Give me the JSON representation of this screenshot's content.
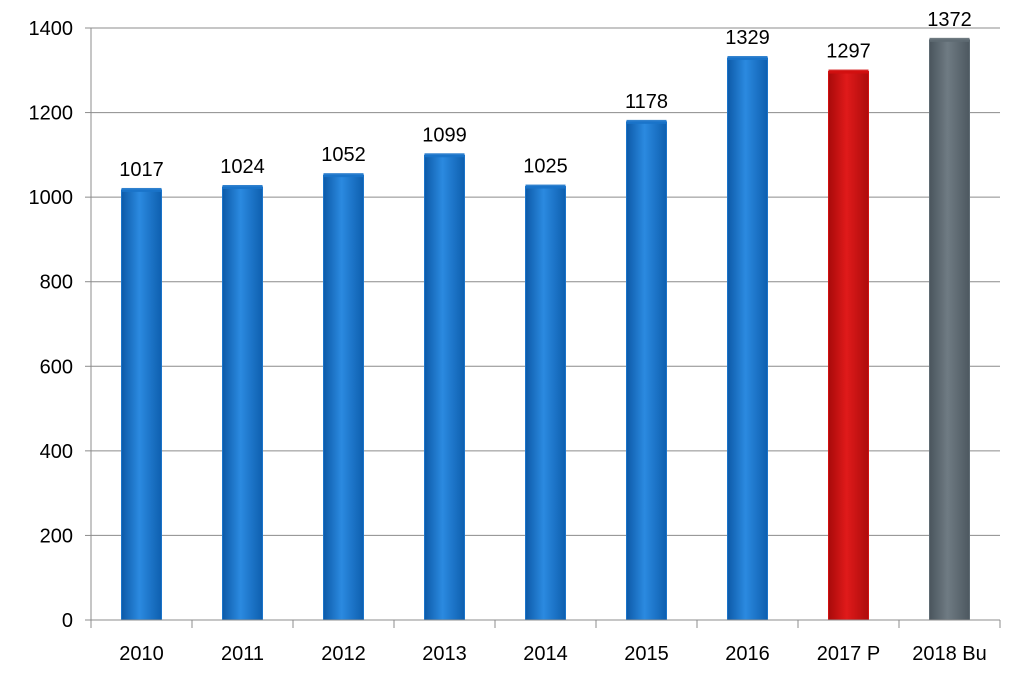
{
  "chart_data": {
    "type": "bar",
    "title": "",
    "xlabel": "",
    "ylabel": "",
    "categories": [
      "2010",
      "2011",
      "2012",
      "2013",
      "2014",
      "2015",
      "2016",
      "2017 P",
      "2018 Bu"
    ],
    "values": [
      1017,
      1024,
      1052,
      1099,
      1025,
      1178,
      1329,
      1297,
      1372
    ],
    "data_labels": [
      "1017",
      "1024",
      "1052",
      "1099",
      "1025",
      "1178",
      "1329",
      "1297",
      "1372"
    ],
    "bar_colors": [
      "#1a73c9",
      "#1a73c9",
      "#1a73c9",
      "#1a73c9",
      "#1a73c9",
      "#1a73c9",
      "#1a73c9",
      "#d21010",
      "#5f6b73"
    ],
    "ylim": [
      0,
      1400
    ],
    "yticks": [
      0,
      200,
      400,
      600,
      800,
      1000,
      1200,
      1400
    ],
    "ytick_labels": [
      "0",
      "200",
      "400",
      "600",
      "800",
      "1000",
      "1200",
      "1400"
    ],
    "grid": true,
    "legend": "none"
  }
}
